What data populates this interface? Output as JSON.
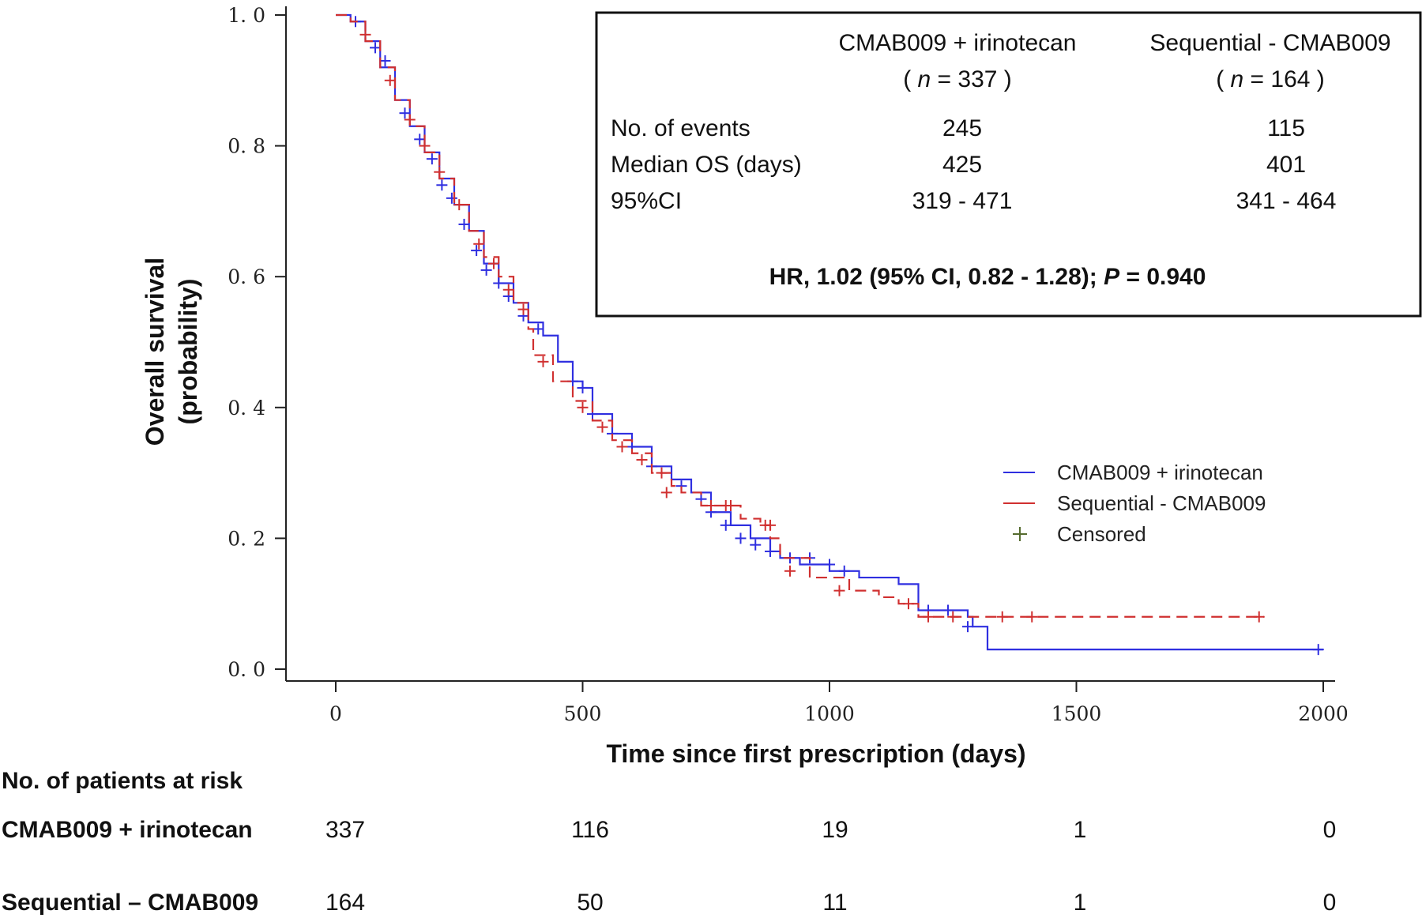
{
  "chart_data": {
    "type": "line",
    "subtype": "kaplan-meier",
    "xlabel": "Time since first prescription (days)",
    "ylabel_line1": "Overall survival",
    "ylabel_line2": "(probability)",
    "xlim": [
      0,
      2000
    ],
    "ylim": [
      0,
      1
    ],
    "x_ticks": [
      "0",
      "500",
      "1000",
      "1500",
      "2000"
    ],
    "y_ticks": [
      "0. 0",
      "0. 2",
      "0. 4",
      "0. 6",
      "0. 8",
      "1. 0"
    ],
    "series": [
      {
        "name": "CMAB009 + irinotecan",
        "color": "#2f2fe0",
        "dash": "solid",
        "points": [
          [
            0,
            1.0
          ],
          [
            30,
            0.99
          ],
          [
            60,
            0.96
          ],
          [
            90,
            0.92
          ],
          [
            120,
            0.87
          ],
          [
            150,
            0.83
          ],
          [
            180,
            0.79
          ],
          [
            210,
            0.75
          ],
          [
            240,
            0.71
          ],
          [
            270,
            0.67
          ],
          [
            300,
            0.62
          ],
          [
            330,
            0.59
          ],
          [
            360,
            0.56
          ],
          [
            390,
            0.53
          ],
          [
            420,
            0.51
          ],
          [
            450,
            0.47
          ],
          [
            480,
            0.44
          ],
          [
            500,
            0.43
          ],
          [
            520,
            0.39
          ],
          [
            560,
            0.36
          ],
          [
            600,
            0.34
          ],
          [
            640,
            0.31
          ],
          [
            680,
            0.29
          ],
          [
            720,
            0.27
          ],
          [
            760,
            0.24
          ],
          [
            800,
            0.22
          ],
          [
            840,
            0.2
          ],
          [
            880,
            0.18
          ],
          [
            900,
            0.17
          ],
          [
            940,
            0.16
          ],
          [
            1000,
            0.15
          ],
          [
            1060,
            0.14
          ],
          [
            1140,
            0.13
          ],
          [
            1180,
            0.09
          ],
          [
            1280,
            0.08
          ],
          [
            1290,
            0.065
          ],
          [
            1320,
            0.03
          ],
          [
            2000,
            0.03
          ]
        ],
        "censored": [
          [
            40,
            0.99
          ],
          [
            80,
            0.95
          ],
          [
            100,
            0.93
          ],
          [
            140,
            0.85
          ],
          [
            170,
            0.81
          ],
          [
            195,
            0.78
          ],
          [
            215,
            0.74
          ],
          [
            235,
            0.72
          ],
          [
            260,
            0.68
          ],
          [
            285,
            0.64
          ],
          [
            305,
            0.61
          ],
          [
            330,
            0.59
          ],
          [
            350,
            0.57
          ],
          [
            380,
            0.54
          ],
          [
            410,
            0.52
          ],
          [
            480,
            0.44
          ],
          [
            500,
            0.43
          ],
          [
            520,
            0.39
          ],
          [
            560,
            0.36
          ],
          [
            600,
            0.34
          ],
          [
            640,
            0.31
          ],
          [
            700,
            0.28
          ],
          [
            740,
            0.26
          ],
          [
            760,
            0.24
          ],
          [
            790,
            0.22
          ],
          [
            820,
            0.2
          ],
          [
            850,
            0.19
          ],
          [
            880,
            0.18
          ],
          [
            920,
            0.17
          ],
          [
            960,
            0.17
          ],
          [
            1000,
            0.16
          ],
          [
            1030,
            0.15
          ],
          [
            1200,
            0.09
          ],
          [
            1240,
            0.09
          ],
          [
            1280,
            0.065
          ],
          [
            1990,
            0.03
          ]
        ]
      },
      {
        "name": "Sequential - CMAB009",
        "color": "#d03030",
        "dash": "dashed",
        "points": [
          [
            0,
            1.0
          ],
          [
            30,
            0.99
          ],
          [
            60,
            0.96
          ],
          [
            90,
            0.92
          ],
          [
            120,
            0.87
          ],
          [
            150,
            0.83
          ],
          [
            180,
            0.79
          ],
          [
            210,
            0.75
          ],
          [
            240,
            0.71
          ],
          [
            270,
            0.67
          ],
          [
            300,
            0.63
          ],
          [
            330,
            0.6
          ],
          [
            360,
            0.56
          ],
          [
            390,
            0.52
          ],
          [
            400,
            0.48
          ],
          [
            440,
            0.44
          ],
          [
            480,
            0.41
          ],
          [
            520,
            0.38
          ],
          [
            560,
            0.35
          ],
          [
            600,
            0.33
          ],
          [
            640,
            0.3
          ],
          [
            680,
            0.28
          ],
          [
            700,
            0.27
          ],
          [
            740,
            0.25
          ],
          [
            800,
            0.25
          ],
          [
            820,
            0.23
          ],
          [
            860,
            0.22
          ],
          [
            880,
            0.2
          ],
          [
            900,
            0.17
          ],
          [
            960,
            0.14
          ],
          [
            1040,
            0.12
          ],
          [
            1100,
            0.11
          ],
          [
            1140,
            0.1
          ],
          [
            1180,
            0.08
          ],
          [
            1880,
            0.08
          ]
        ],
        "censored": [
          [
            60,
            0.97
          ],
          [
            110,
            0.9
          ],
          [
            150,
            0.84
          ],
          [
            180,
            0.8
          ],
          [
            210,
            0.76
          ],
          [
            250,
            0.71
          ],
          [
            290,
            0.65
          ],
          [
            320,
            0.62
          ],
          [
            350,
            0.58
          ],
          [
            380,
            0.55
          ],
          [
            420,
            0.47
          ],
          [
            500,
            0.4
          ],
          [
            540,
            0.37
          ],
          [
            580,
            0.34
          ],
          [
            620,
            0.32
          ],
          [
            660,
            0.3
          ],
          [
            670,
            0.27
          ],
          [
            760,
            0.25
          ],
          [
            790,
            0.25
          ],
          [
            800,
            0.25
          ],
          [
            870,
            0.22
          ],
          [
            880,
            0.22
          ],
          [
            920,
            0.15
          ],
          [
            1020,
            0.12
          ],
          [
            1160,
            0.1
          ],
          [
            1200,
            0.08
          ],
          [
            1250,
            0.08
          ],
          [
            1350,
            0.08
          ],
          [
            1410,
            0.08
          ],
          [
            1870,
            0.08
          ]
        ]
      }
    ],
    "legend": {
      "placement": "right",
      "entries": [
        "CMAB009 + irinotecan",
        "Sequential - CMAB009",
        "Censored"
      ]
    }
  },
  "info_box": {
    "col1_header": "CMAB009 + irinotecan",
    "col1_n_prefix": "( ",
    "col1_n_italic": "n",
    "col1_n_suffix": " = 337 )",
    "col2_header": "Sequential - CMAB009",
    "col2_n_prefix": "( ",
    "col2_n_italic": "n",
    "col2_n_suffix": " = 164 )",
    "rows": [
      {
        "label": "No. of events",
        "v1": "245",
        "v2": "115"
      },
      {
        "label": "Median OS (days)",
        "v1": "425",
        "v2": "401"
      },
      {
        "label": "95%CI",
        "v1": "319 - 471",
        "v2": "341 - 464"
      }
    ],
    "hr_prefix": "HR, 1.02 (95% CI, 0.82 - 1.28); ",
    "hr_p_italic": "P",
    "hr_suffix": " = 0.940"
  },
  "risk_table": {
    "title": "No. of patients at risk",
    "rows": [
      {
        "label": "CMAB009 + irinotecan",
        "values": [
          "337",
          "116",
          "19",
          "1",
          "0"
        ]
      },
      {
        "label": "Sequential – CMAB009",
        "values": [
          "164",
          "50",
          "11",
          "1",
          "0"
        ]
      }
    ]
  }
}
